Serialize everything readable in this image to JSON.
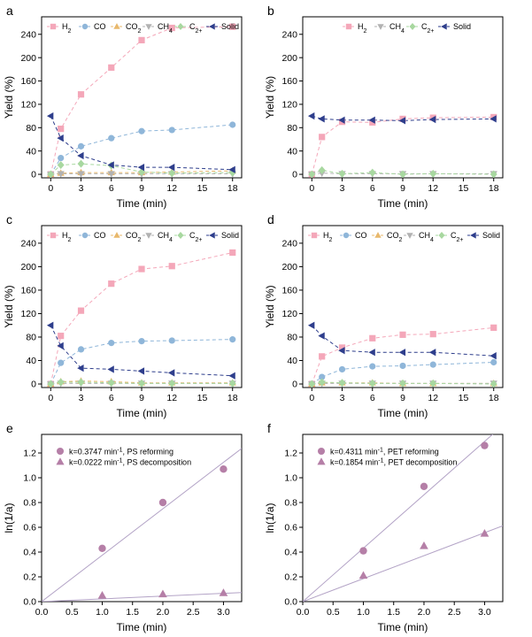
{
  "chart_data": [
    {
      "id": "a",
      "type": "line",
      "panel_letter": "a",
      "xlabel": "Time (min)",
      "ylabel": "Yield (%)",
      "xlim": [
        -0.9,
        18.9
      ],
      "ylim": [
        -6,
        270
      ],
      "xticks": [
        0,
        3,
        6,
        9,
        12,
        15,
        18
      ],
      "yticks": [
        0,
        40,
        80,
        120,
        160,
        200,
        240
      ],
      "x": [
        0,
        1,
        3,
        6,
        9,
        12,
        18
      ],
      "series": [
        {
          "name": "H2",
          "label_base": "H",
          "label_sub": "2",
          "color": "#f4a7b9",
          "marker": "square",
          "values": [
            0,
            78,
            137,
            183,
            230,
            251,
            253
          ]
        },
        {
          "name": "CO",
          "label_base": "CO",
          "label_sub": "",
          "color": "#8fb6d9",
          "marker": "circle",
          "values": [
            0,
            28,
            48,
            62,
            74,
            76,
            85
          ]
        },
        {
          "name": "CO2",
          "label_base": "CO",
          "label_sub": "2",
          "color": "#e8b86c",
          "marker": "triangle-up",
          "values": [
            0,
            2,
            3,
            3,
            3,
            4,
            6
          ]
        },
        {
          "name": "CH4",
          "label_base": "CH",
          "label_sub": "4",
          "color": "#b2b2b2",
          "marker": "triangle-down",
          "values": [
            0,
            1,
            1,
            1,
            1,
            1,
            1
          ]
        },
        {
          "name": "C2+",
          "label_base": "C",
          "label_sub": "2+",
          "color": "#a8d8a0",
          "marker": "diamond",
          "values": [
            0,
            16,
            18,
            15,
            4,
            2,
            3
          ]
        },
        {
          "name": "Solid",
          "label_base": "Solid",
          "label_sub": "",
          "color": "#2e3e8c",
          "marker": "triangle-left",
          "values": [
            100,
            62,
            32,
            16,
            12,
            12,
            8
          ]
        }
      ],
      "legend_position": "top"
    },
    {
      "id": "b",
      "type": "line",
      "panel_letter": "b",
      "xlabel": "Time (min)",
      "ylabel": "Yield (%)",
      "xlim": [
        -0.9,
        18.9
      ],
      "ylim": [
        -6,
        270
      ],
      "xticks": [
        0,
        3,
        6,
        9,
        12,
        15,
        18
      ],
      "yticks": [
        0,
        40,
        80,
        120,
        160,
        200,
        240
      ],
      "x": [
        0,
        1,
        3,
        6,
        9,
        12,
        18
      ],
      "series": [
        {
          "name": "H2",
          "label_base": "H",
          "label_sub": "2",
          "color": "#f4a7b9",
          "marker": "square",
          "values": [
            0,
            64,
            90,
            89,
            95,
            97,
            98
          ]
        },
        {
          "name": "CH4",
          "label_base": "CH",
          "label_sub": "4",
          "color": "#b2b2b2",
          "marker": "triangle-down",
          "values": [
            0,
            2,
            1,
            1,
            1,
            1,
            1
          ]
        },
        {
          "name": "C2+",
          "label_base": "C",
          "label_sub": "2+",
          "color": "#a8d8a0",
          "marker": "diamond",
          "values": [
            0,
            7,
            1,
            3,
            0,
            1,
            0
          ]
        },
        {
          "name": "Solid",
          "label_base": "Solid",
          "label_sub": "",
          "color": "#2e3e8c",
          "marker": "triangle-left",
          "values": [
            100,
            95,
            93,
            93,
            92,
            94,
            95
          ]
        }
      ],
      "legend_position": "top"
    },
    {
      "id": "c",
      "type": "line",
      "panel_letter": "c",
      "xlabel": "Time (min)",
      "ylabel": "Yield (%)",
      "xlim": [
        -0.9,
        18.9
      ],
      "ylim": [
        -6,
        270
      ],
      "xticks": [
        0,
        3,
        6,
        9,
        12,
        15,
        18
      ],
      "yticks": [
        0,
        40,
        80,
        120,
        160,
        200,
        240
      ],
      "x": [
        0,
        1,
        3,
        6,
        9,
        12,
        18
      ],
      "series": [
        {
          "name": "H2",
          "label_base": "H",
          "label_sub": "2",
          "color": "#f4a7b9",
          "marker": "square",
          "values": [
            0,
            82,
            125,
            171,
            196,
            201,
            224
          ]
        },
        {
          "name": "CO",
          "label_base": "CO",
          "label_sub": "",
          "color": "#8fb6d9",
          "marker": "circle",
          "values": [
            0,
            36,
            59,
            70,
            73,
            74,
            76
          ]
        },
        {
          "name": "CO2",
          "label_base": "CO",
          "label_sub": "2",
          "color": "#e8b86c",
          "marker": "triangle-up",
          "values": [
            0,
            4,
            5,
            4,
            2,
            2,
            2
          ]
        },
        {
          "name": "CH4",
          "label_base": "CH",
          "label_sub": "4",
          "color": "#b2b2b2",
          "marker": "triangle-down",
          "values": [
            0,
            1,
            1,
            1,
            1,
            1,
            1
          ]
        },
        {
          "name": "C2+",
          "label_base": "C",
          "label_sub": "2+",
          "color": "#a8d8a0",
          "marker": "diamond",
          "values": [
            0,
            3,
            3,
            2,
            1,
            1,
            1
          ]
        },
        {
          "name": "Solid",
          "label_base": "Solid",
          "label_sub": "",
          "color": "#2e3e8c",
          "marker": "triangle-left",
          "values": [
            100,
            65,
            27,
            25,
            22,
            19,
            14
          ]
        }
      ],
      "legend_position": "top"
    },
    {
      "id": "d",
      "type": "line",
      "panel_letter": "d",
      "xlabel": "Time (min)",
      "ylabel": "Yield (%)",
      "xlim": [
        -0.9,
        18.9
      ],
      "ylim": [
        -6,
        270
      ],
      "xticks": [
        0,
        3,
        6,
        9,
        12,
        15,
        18
      ],
      "yticks": [
        0,
        40,
        80,
        120,
        160,
        200,
        240
      ],
      "x": [
        0,
        1,
        3,
        6,
        9,
        12,
        18
      ],
      "series": [
        {
          "name": "H2",
          "label_base": "H",
          "label_sub": "2",
          "color": "#f4a7b9",
          "marker": "square",
          "values": [
            0,
            47,
            62,
            78,
            84,
            85,
            96
          ]
        },
        {
          "name": "CO",
          "label_base": "CO",
          "label_sub": "",
          "color": "#8fb6d9",
          "marker": "circle",
          "values": [
            0,
            12,
            25,
            30,
            31,
            33,
            37
          ]
        },
        {
          "name": "CO2",
          "label_base": "CO",
          "label_sub": "2",
          "color": "#e8b86c",
          "marker": "triangle-up",
          "values": [
            0,
            2,
            2,
            2,
            1,
            1,
            1
          ]
        },
        {
          "name": "CH4",
          "label_base": "CH",
          "label_sub": "4",
          "color": "#b2b2b2",
          "marker": "triangle-down",
          "values": [
            0,
            1,
            1,
            1,
            1,
            1,
            1
          ]
        },
        {
          "name": "C2+",
          "label_base": "C",
          "label_sub": "2+",
          "color": "#a8d8a0",
          "marker": "diamond",
          "values": [
            0,
            3,
            2,
            1,
            1,
            1,
            0
          ]
        },
        {
          "name": "Solid",
          "label_base": "Solid",
          "label_sub": "",
          "color": "#2e3e8c",
          "marker": "triangle-left",
          "values": [
            100,
            82,
            57,
            54,
            54,
            54,
            48
          ]
        }
      ],
      "legend_position": "top"
    },
    {
      "id": "e",
      "type": "scatter",
      "panel_letter": "e",
      "xlabel": "Time (min)",
      "ylabel": "ln(1/a)",
      "xlim": [
        0,
        3.3
      ],
      "ylim": [
        0,
        1.35
      ],
      "xticks": [
        0.0,
        0.5,
        1.0,
        1.5,
        2.0,
        2.5,
        3.0
      ],
      "xtick_labels": [
        "0.0",
        "0.5",
        "1.0",
        "1.5",
        "2.0",
        "2.5",
        "3.0"
      ],
      "yticks": [
        0.0,
        0.2,
        0.4,
        0.6,
        0.8,
        1.0,
        1.2
      ],
      "ytick_labels": [
        "0.0",
        "0.2",
        "0.4",
        "0.6",
        "0.8",
        "1.0",
        "1.2"
      ],
      "series": [
        {
          "name": "k=0.3747 min-1, PS reforming",
          "label_main": "k=0.3747 min",
          "label_sup": "-1",
          "label_tail": ",  PS reforming",
          "marker": "circle",
          "color": "#b57fa7",
          "x": [
            1,
            2,
            3
          ],
          "values": [
            0.43,
            0.8,
            1.07
          ],
          "fit_slope": 0.3747
        },
        {
          "name": "k=0.0222 min-1, PS decomposition",
          "label_main": "k=0.0222 min",
          "label_sup": "-1",
          "label_tail": ",  PS decomposition",
          "marker": "triangle-up",
          "color": "#b57fa7",
          "x": [
            1,
            2,
            3
          ],
          "values": [
            0.05,
            0.06,
            0.07
          ],
          "fit_slope": 0.0222
        }
      ],
      "fit_color": "#b3a3c6",
      "legend_position": "top-left"
    },
    {
      "id": "f",
      "type": "scatter",
      "panel_letter": "f",
      "xlabel": "Time (min)",
      "ylabel": "ln(1/a)",
      "xlim": [
        0,
        3.3
      ],
      "ylim": [
        0,
        1.35
      ],
      "xticks": [
        0.0,
        0.5,
        1.0,
        1.5,
        2.0,
        2.5,
        3.0
      ],
      "xtick_labels": [
        "0.0",
        "0.5",
        "1.0",
        "1.5",
        "2.0",
        "2.5",
        "3.0"
      ],
      "yticks": [
        0.0,
        0.2,
        0.4,
        0.6,
        0.8,
        1.0,
        1.2
      ],
      "ytick_labels": [
        "0.0",
        "0.2",
        "0.4",
        "0.6",
        "0.8",
        "1.0",
        "1.2"
      ],
      "series": [
        {
          "name": "k=0.4311 min-1, PET reforming",
          "label_main": "k=0.4311 min",
          "label_sup": "-1",
          "label_tail": ",  PET reforming",
          "marker": "circle",
          "color": "#b57fa7",
          "x": [
            1,
            2,
            3
          ],
          "values": [
            0.41,
            0.93,
            1.26
          ],
          "fit_slope": 0.4311
        },
        {
          "name": "k=0.1854 min-1, PET decomposition",
          "label_main": "k=0.1854 min",
          "label_sup": "-1",
          "label_tail": ",  PET decomposition",
          "marker": "triangle-up",
          "color": "#b57fa7",
          "x": [
            1,
            2,
            3
          ],
          "values": [
            0.21,
            0.45,
            0.55
          ],
          "fit_slope": 0.1854
        }
      ],
      "fit_color": "#b3a3c6",
      "legend_position": "top-left"
    }
  ]
}
